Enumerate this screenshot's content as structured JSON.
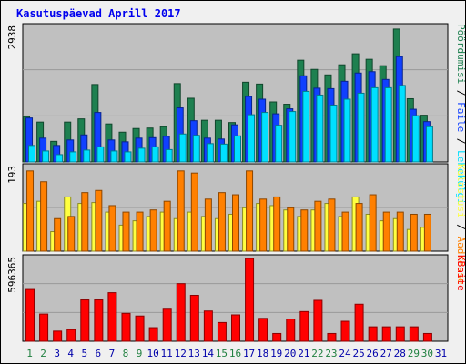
{
  "title": "Kasutuspäevad Aprill 2017",
  "colors": {
    "page_bg": "#f0f0f0",
    "plot_bg": "#c0c0c0",
    "grid": "#999999",
    "hits": "#1e8050",
    "files": "#1040ff",
    "pages": "#00e0ff",
    "visits": "#ff8000",
    "sites": "#ffff40",
    "kbytes": "#ff0000",
    "weekday_label": "#0000aa",
    "weekend_label": "#208040"
  },
  "chart_data": [
    {
      "type": "bar",
      "panel": "top",
      "ymax_label": "2938",
      "ylim": [
        0,
        2938
      ],
      "categories": [
        "1",
        "2",
        "3",
        "4",
        "5",
        "6",
        "7",
        "8",
        "9",
        "10",
        "11",
        "12",
        "13",
        "14",
        "15",
        "16",
        "17",
        "18",
        "19",
        "20",
        "21",
        "22",
        "23",
        "24",
        "25",
        "26",
        "27",
        "28",
        "29",
        "30",
        "31"
      ],
      "weekend": [
        "1",
        "2",
        "8",
        "9",
        "15",
        "16",
        "22",
        "23",
        "29",
        "30"
      ],
      "right_labels": [
        {
          "text": "Pöördumisi",
          "color_key": "hits"
        },
        {
          "text": "Faile",
          "color_key": "files"
        },
        {
          "text": "Lehekülgi",
          "color_key": "pages"
        }
      ],
      "series": [
        {
          "name": "Pöördumisi",
          "color_key": "hits",
          "values": [
            990,
            870,
            450,
            870,
            940,
            1690,
            830,
            650,
            730,
            740,
            770,
            1710,
            1390,
            910,
            910,
            860,
            1740,
            1700,
            1310,
            1260,
            2220,
            2020,
            1900,
            2120,
            2360,
            2240,
            2100,
            2900,
            1380,
            1020,
            0
          ]
        },
        {
          "name": "Faile",
          "color_key": "files",
          "values": [
            960,
            520,
            360,
            480,
            590,
            1080,
            480,
            440,
            520,
            530,
            560,
            1180,
            900,
            520,
            500,
            810,
            1430,
            1370,
            1050,
            1160,
            1880,
            1610,
            1600,
            1760,
            1940,
            1970,
            1800,
            2300,
            1150,
            880,
            0
          ]
        },
        {
          "name": "Lehekülgi",
          "color_key": "pages",
          "values": [
            360,
            240,
            160,
            220,
            260,
            330,
            240,
            220,
            300,
            330,
            270,
            610,
            580,
            400,
            390,
            570,
            1030,
            1080,
            800,
            1100,
            1540,
            1460,
            1240,
            1370,
            1500,
            1620,
            1620,
            1670,
            1010,
            770,
            0
          ]
        }
      ]
    },
    {
      "type": "bar",
      "panel": "middle",
      "ymax_label": "193",
      "ylim": [
        0,
        193
      ],
      "categories": [
        "1",
        "2",
        "3",
        "4",
        "5",
        "6",
        "7",
        "8",
        "9",
        "10",
        "11",
        "12",
        "13",
        "14",
        "15",
        "16",
        "17",
        "18",
        "19",
        "20",
        "21",
        "22",
        "23",
        "24",
        "25",
        "26",
        "27",
        "28",
        "29",
        "30",
        "31"
      ],
      "right_labels": [
        {
          "text": "Külastusi",
          "color_key": "sites"
        },
        {
          "text": "Aadresse",
          "color_key": "visits"
        }
      ],
      "series": [
        {
          "name": "Külastusi",
          "color_key": "sites",
          "values": [
            110,
            115,
            45,
            125,
            110,
            112,
            90,
            60,
            70,
            80,
            90,
            75,
            90,
            80,
            75,
            85,
            100,
            110,
            105,
            95,
            80,
            95,
            110,
            80,
            125,
            85,
            70,
            75,
            50,
            55,
            0
          ]
        },
        {
          "name": "Aadresse",
          "color_key": "visits",
          "values": [
            185,
            160,
            75,
            80,
            135,
            140,
            105,
            90,
            90,
            95,
            115,
            185,
            180,
            120,
            135,
            130,
            185,
            120,
            125,
            100,
            95,
            115,
            120,
            90,
            110,
            130,
            90,
            90,
            85,
            85,
            0
          ]
        }
      ]
    },
    {
      "type": "bar",
      "panel": "bottom",
      "ymax_label": "596365",
      "ylim": [
        0,
        596365
      ],
      "categories": [
        "1",
        "2",
        "3",
        "4",
        "5",
        "6",
        "7",
        "8",
        "9",
        "10",
        "11",
        "12",
        "13",
        "14",
        "15",
        "16",
        "17",
        "18",
        "19",
        "20",
        "21",
        "22",
        "23",
        "24",
        "25",
        "26",
        "27",
        "28",
        "29",
        "30",
        "31"
      ],
      "right_labels": [
        {
          "text": "KBaite",
          "color_key": "kbytes"
        }
      ],
      "series": [
        {
          "name": "KBaite",
          "color_key": "kbytes",
          "values": [
            373000,
            196000,
            73000,
            84000,
            298000,
            298000,
            350000,
            201000,
            182000,
            98000,
            231000,
            415000,
            331000,
            218000,
            135000,
            190000,
            596365,
            165000,
            56000,
            160000,
            214000,
            295000,
            56000,
            144000,
            267000,
            104000,
            104000,
            104000,
            104000,
            56000,
            0
          ]
        }
      ]
    }
  ]
}
